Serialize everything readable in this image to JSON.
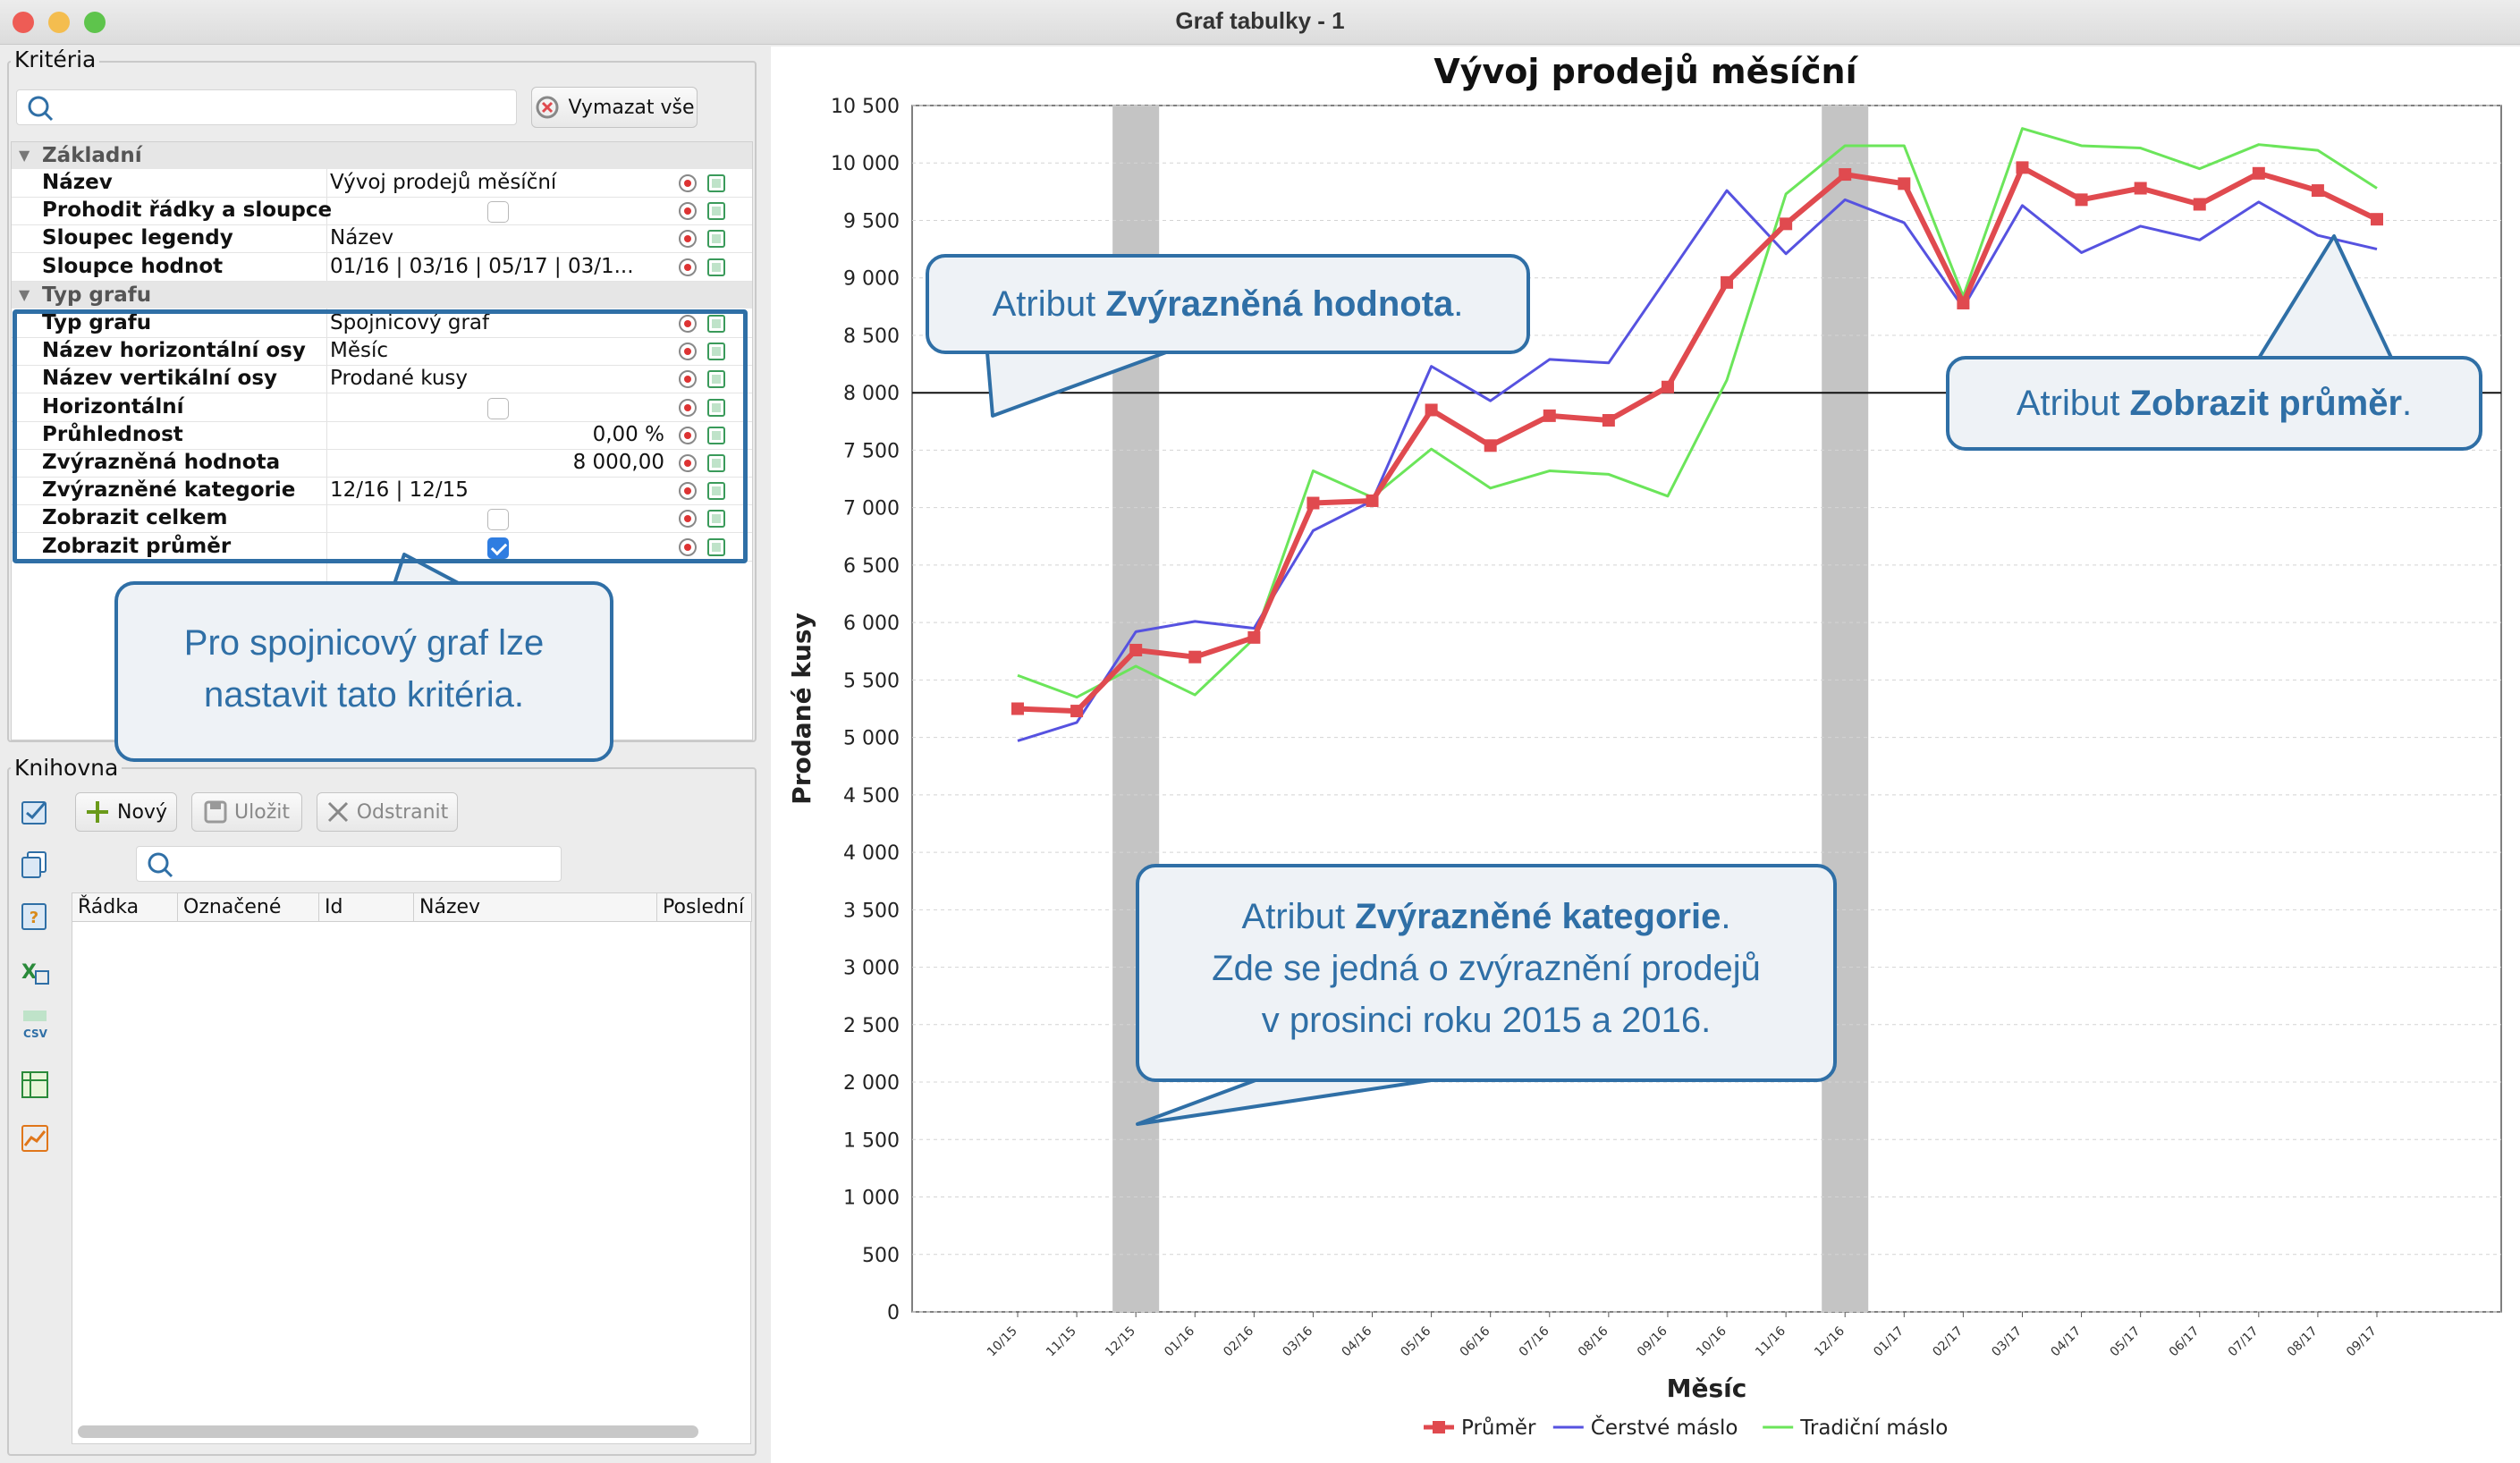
{
  "window": {
    "title": "Graf tabulky - 1"
  },
  "criteria": {
    "legend": "Kritéria",
    "search_placeholder": "",
    "clear_all_label": "Vymazat vše",
    "groups": {
      "basic": "Základní",
      "chart_type": "Typ grafu"
    },
    "basic_rows": [
      {
        "name": "Název",
        "value": "Vývoj prodejů měsíční"
      },
      {
        "name": "Prohodit řádky a sloupce",
        "checked": false
      },
      {
        "name": "Sloupec legendy",
        "value": "Název"
      },
      {
        "name": "Sloupce hodnot",
        "value": "01/16 | 03/16 | 05/17 | 03/1..."
      }
    ],
    "chart_rows": [
      {
        "name": "Typ grafu",
        "value": "Spojnicový graf"
      },
      {
        "name": "Název horizontální osy",
        "value": "Měsíc"
      },
      {
        "name": "Název vertikální osy",
        "value": "Prodané kusy"
      },
      {
        "name": "Horizontální",
        "checked": false
      },
      {
        "name": "Průhlednost",
        "value": "0,00 %"
      },
      {
        "name": "Zvýrazněná hodnota",
        "value": "8 000,00"
      },
      {
        "name": "Zvýrazněné kategorie",
        "value": "12/16 | 12/15"
      },
      {
        "name": "Zobrazit celkem",
        "checked": false
      },
      {
        "name": "Zobrazit průměr",
        "checked": true
      }
    ]
  },
  "library": {
    "legend": "Knihovna",
    "new_label": "Nový",
    "save_label": "Uložit",
    "delete_label": "Odstranit",
    "columns": [
      "Řádka",
      "Označené",
      "Id",
      "Název",
      "Poslední zm"
    ]
  },
  "callouts": {
    "criteria_note": "Pro spojnicový graf lze nastavit tato kritéria.",
    "highlight_value_prefix": "Atribut ",
    "highlight_value_bold": "Zvýrazněná hodnota",
    "highlight_value_suffix": ".",
    "average_prefix": "Atribut ",
    "average_bold": "Zobrazit průměr",
    "average_suffix": ".",
    "categories_prefix": "Atribut ",
    "categories_bold": "Zvýrazněné kategorie",
    "categories_suffix": ".",
    "categories_line2": "Zde se jedná o zvýraznění prodejů",
    "categories_line3": "v prosinci roku 2015 a 2016."
  },
  "chart_data": {
    "type": "line",
    "title": "Vývoj prodejů měsíční",
    "xlabel": "Měsíc",
    "ylabel": "Prodané kusy",
    "ylim": [
      0,
      10500
    ],
    "yticks": [
      0,
      500,
      1000,
      1500,
      2000,
      2500,
      3000,
      3500,
      4000,
      4500,
      5000,
      5500,
      6000,
      6500,
      7000,
      7500,
      8000,
      8500,
      9000,
      9500,
      10000,
      10500
    ],
    "ytick_labels": [
      "0",
      "500",
      "1 000",
      "1 500",
      "2 000",
      "2 500",
      "3 000",
      "3 500",
      "4 000",
      "4 500",
      "5 000",
      "5 500",
      "6 000",
      "6 500",
      "7 000",
      "7 500",
      "8 000",
      "8 500",
      "9 000",
      "9 500",
      "10 000",
      "10 500"
    ],
    "categories": [
      "10/15",
      "11/15",
      "12/15",
      "01/16",
      "02/16",
      "03/16",
      "04/16",
      "05/16",
      "06/16",
      "07/16",
      "08/16",
      "09/16",
      "10/16",
      "11/16",
      "12/16",
      "01/17",
      "02/17",
      "03/17",
      "04/17",
      "05/17",
      "06/17",
      "07/17",
      "08/17",
      "09/17"
    ],
    "highlight_value": 8000,
    "highlight_categories": [
      "12/15",
      "12/16"
    ],
    "series": [
      {
        "name": "Průměr",
        "color": "#e04a4f",
        "marker": "square",
        "values": [
          5250,
          5230,
          5760,
          5700,
          5870,
          7040,
          7060,
          7850,
          7540,
          7800,
          7760,
          8050,
          8960,
          9470,
          9900,
          9820,
          8780,
          9960,
          9680,
          9780,
          9640,
          9910,
          9760,
          9510
        ]
      },
      {
        "name": "Čerstvé máslo",
        "color": "#5652e0",
        "values": [
          4970,
          5130,
          5920,
          6010,
          5950,
          6800,
          7060,
          8230,
          7930,
          8290,
          8260,
          9010,
          9760,
          9210,
          9680,
          9480,
          8740,
          9630,
          9220,
          9450,
          9330,
          9660,
          9370,
          9250
        ]
      },
      {
        "name": "Tradiční máslo",
        "color": "#6be55a",
        "values": [
          5540,
          5350,
          5620,
          5370,
          5860,
          7320,
          7090,
          7510,
          7170,
          7320,
          7290,
          7100,
          8110,
          9730,
          10150,
          10150,
          8840,
          10300,
          10150,
          10130,
          9950,
          10160,
          10110,
          9780
        ]
      }
    ],
    "legend_position": "bottom-center",
    "grid": true
  }
}
